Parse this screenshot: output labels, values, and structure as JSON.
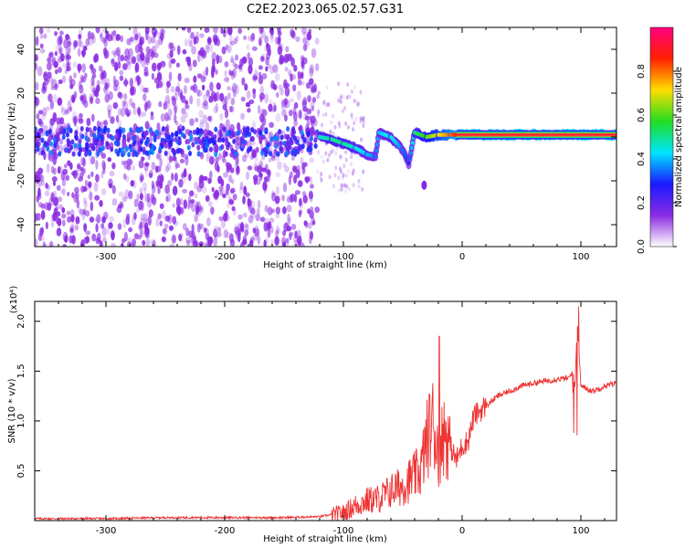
{
  "title": "C2E2.2023.065.02.57.G31",
  "colors": {
    "snr_line": "#ee3333",
    "spectrogram_noise": "#8a2be2",
    "colorbar_stops": [
      "#ffffff",
      "#8a2be2",
      "#1a1aff",
      "#00e5ff",
      "#22dd22",
      "#ffdd00",
      "#ff2200",
      "#ff007f"
    ]
  },
  "chart_data": [
    {
      "type": "heatmap",
      "xlabel": "Height of straight line (km)",
      "ylabel": "Frequency (Hz)",
      "xlim": [
        -360,
        130
      ],
      "ylim": [
        -50,
        50
      ],
      "x_ticks": [
        -300,
        -200,
        -100,
        0,
        100
      ],
      "x_tick_labels": [
        "-300",
        "-200",
        "-100",
        "0",
        "100"
      ],
      "y_ticks": [
        -40,
        -20,
        0,
        20,
        40
      ],
      "y_tick_labels": [
        "-40",
        "-20",
        "0",
        "20",
        "40"
      ],
      "colorbar": {
        "label": "Normalized spectral amplitude",
        "range": [
          0,
          1
        ],
        "ticks": [
          0.0,
          0.2,
          0.4,
          0.6,
          0.8
        ],
        "tick_labels": [
          "0.0",
          "0.2",
          "0.4",
          "0.6",
          "0.8"
        ]
      },
      "noise_region_x": [
        -360,
        -122
      ],
      "signal_path": [
        {
          "x": -120,
          "y": 0,
          "amp": 0.45
        },
        {
          "x": -110,
          "y": -1,
          "amp": 0.5
        },
        {
          "x": -100,
          "y": -3,
          "amp": 0.5
        },
        {
          "x": -90,
          "y": -5,
          "amp": 0.45
        },
        {
          "x": -80,
          "y": -8,
          "amp": 0.4
        },
        {
          "x": -73,
          "y": -9,
          "amp": 0.35
        },
        {
          "x": -70,
          "y": 2,
          "amp": 0.4
        },
        {
          "x": -60,
          "y": 0,
          "amp": 0.45
        },
        {
          "x": -50,
          "y": -6,
          "amp": 0.35
        },
        {
          "x": -45,
          "y": -12,
          "amp": 0.3
        },
        {
          "x": -40,
          "y": 2,
          "amp": 0.5
        },
        {
          "x": -30,
          "y": 0,
          "amp": 0.6
        },
        {
          "x": -20,
          "y": 1,
          "amp": 0.7
        },
        {
          "x": -10,
          "y": 1,
          "amp": 0.8
        },
        {
          "x": 0,
          "y": 1,
          "amp": 0.9
        },
        {
          "x": 130,
          "y": 1,
          "amp": 0.95
        }
      ]
    },
    {
      "type": "line",
      "xlabel": "Height of straight line (km)",
      "ylabel": "SNR (10 * v/v)",
      "yscale_label": "(x10⁴)",
      "xlim": [
        -360,
        130
      ],
      "ylim": [
        0,
        2.2
      ],
      "x_ticks": [
        -300,
        -200,
        -100,
        0,
        100
      ],
      "x_tick_labels": [
        "-300",
        "-200",
        "-100",
        "0",
        "100"
      ],
      "y_ticks": [
        0.5,
        1.0,
        1.5,
        2.0
      ],
      "y_tick_labels": [
        "0.5",
        "1.0",
        "1.5",
        "2.0"
      ],
      "series": [
        {
          "x": [
            -360,
            -300,
            -250,
            -200,
            -150,
            -120,
            -100,
            -90,
            -80,
            -70,
            -60,
            -50,
            -40,
            -35,
            -30,
            -25,
            -20,
            -18,
            -15,
            -10,
            -5,
            0,
            5,
            10,
            20,
            30,
            40,
            50,
            60,
            70,
            80,
            90,
            93,
            95,
            97,
            100,
            110,
            120,
            130
          ],
          "y": [
            0.02,
            0.02,
            0.03,
            0.03,
            0.03,
            0.04,
            0.08,
            0.15,
            0.2,
            0.22,
            0.3,
            0.35,
            0.45,
            0.5,
            0.8,
            1.0,
            0.7,
            0.75,
            0.9,
            0.75,
            0.6,
            0.75,
            0.8,
            1.05,
            1.15,
            1.25,
            1.3,
            1.35,
            1.38,
            1.4,
            1.42,
            1.43,
            1.5,
            1.35,
            2.0,
            1.35,
            1.3,
            1.35,
            1.38
          ]
        }
      ]
    }
  ]
}
